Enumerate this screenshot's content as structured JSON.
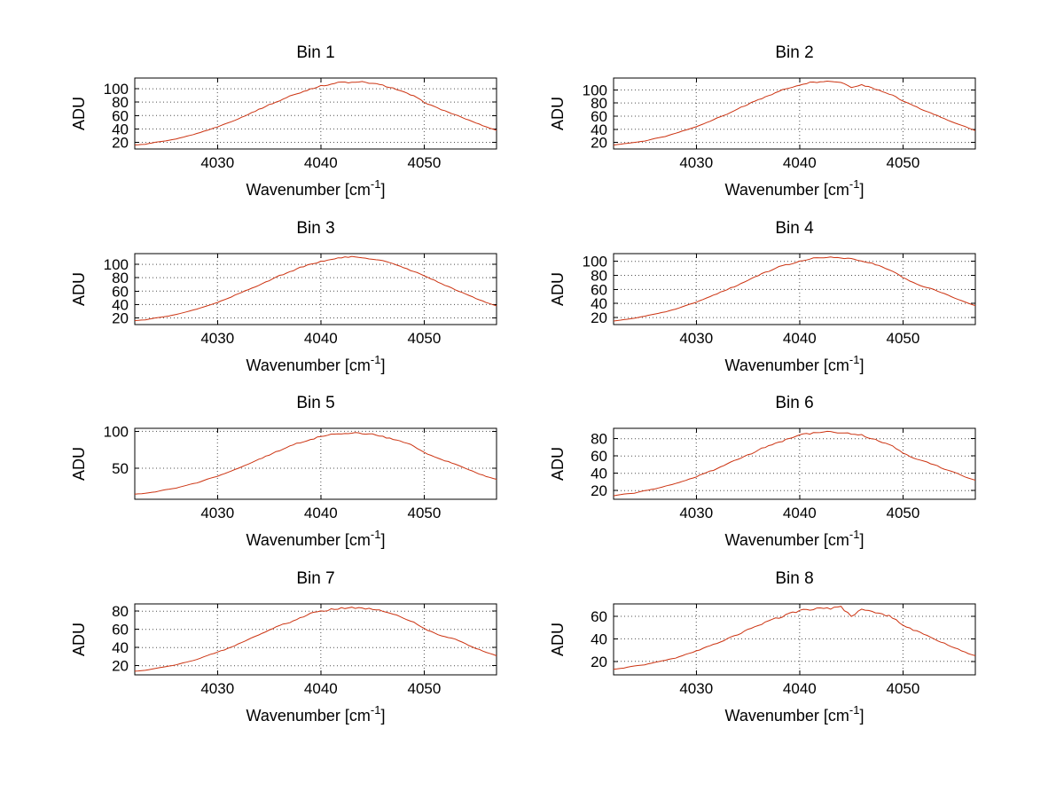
{
  "figure": {
    "background": "#ffffff",
    "line_color": "#cc3311",
    "axis_color": "#000000",
    "grid_color": "#4d4d4d",
    "xlabel_base": "Wavenumber [cm",
    "xlabel_sup": "-1",
    "xlabel_close": "]",
    "ylabel": "ADU"
  },
  "x_values": [
    4022,
    4023,
    4024,
    4025,
    4026,
    4027,
    4028,
    4029,
    4030,
    4031,
    4032,
    4033,
    4034,
    4035,
    4036,
    4037,
    4038,
    4039,
    4040,
    4041,
    4042,
    4043,
    4044,
    4045,
    4046,
    4047,
    4048,
    4049,
    4050,
    4051,
    4052,
    4053,
    4054,
    4055,
    4056,
    4057
  ],
  "chart_data": [
    {
      "type": "line",
      "title": "Bin 1",
      "xlabel": "Wavenumber [cm^-1]",
      "ylabel": "ADU",
      "grid": true,
      "legend": null,
      "xlim": [
        4022,
        4057
      ],
      "ylim": [
        10,
        116
      ],
      "xticks": [
        4030,
        4040,
        4050
      ],
      "yticks": [
        20,
        40,
        60,
        80,
        100
      ],
      "y_values": [
        16,
        17,
        20,
        22,
        25,
        29,
        33,
        38,
        43,
        49,
        55,
        62,
        69,
        76,
        82,
        89,
        94,
        100,
        104,
        107,
        110,
        109,
        110,
        108,
        105,
        101,
        95,
        89,
        80,
        73,
        67,
        61,
        55,
        49,
        43,
        38
      ]
    },
    {
      "type": "line",
      "title": "Bin 2",
      "xlabel": "Wavenumber [cm^-1]",
      "ylabel": "ADU",
      "grid": true,
      "legend": null,
      "xlim": [
        4022,
        4057
      ],
      "ylim": [
        10,
        118
      ],
      "xticks": [
        4030,
        4040,
        4050
      ],
      "yticks": [
        20,
        40,
        60,
        80,
        100
      ],
      "y_values": [
        16,
        18,
        20,
        22,
        26,
        29,
        34,
        39,
        44,
        50,
        57,
        63,
        71,
        78,
        85,
        91,
        98,
        103,
        107,
        111,
        112,
        113,
        112,
        103,
        108,
        103,
        98,
        92,
        83,
        76,
        69,
        63,
        56,
        50,
        44,
        38
      ]
    },
    {
      "type": "line",
      "title": "Bin 3",
      "xlabel": "Wavenumber [cm^-1]",
      "ylabel": "ADU",
      "grid": true,
      "legend": null,
      "xlim": [
        4022,
        4057
      ],
      "ylim": [
        10,
        116
      ],
      "xticks": [
        4030,
        4040,
        4050
      ],
      "yticks": [
        20,
        40,
        60,
        80,
        100
      ],
      "y_values": [
        16,
        17,
        20,
        22,
        25,
        29,
        33,
        38,
        43,
        49,
        56,
        62,
        69,
        76,
        83,
        89,
        95,
        100,
        104,
        108,
        110,
        111,
        110,
        108,
        105,
        101,
        95,
        89,
        83,
        76,
        69,
        62,
        56,
        49,
        43,
        38
      ]
    },
    {
      "type": "line",
      "title": "Bin 4",
      "xlabel": "Wavenumber [cm^-1]",
      "ylabel": "ADU",
      "grid": true,
      "legend": null,
      "xlim": [
        4022,
        4057
      ],
      "ylim": [
        10,
        111
      ],
      "xticks": [
        4030,
        4040,
        4050
      ],
      "yticks": [
        20,
        40,
        60,
        80,
        100
      ],
      "y_values": [
        15,
        17,
        19,
        22,
        25,
        28,
        32,
        37,
        42,
        48,
        54,
        60,
        66,
        73,
        80,
        86,
        92,
        96,
        100,
        104,
        105,
        106,
        105,
        104,
        100,
        97,
        92,
        86,
        77,
        70,
        64,
        60,
        54,
        48,
        42,
        37
      ]
    },
    {
      "type": "line",
      "title": "Bin 5",
      "xlabel": "Wavenumber [cm^-1]",
      "ylabel": "ADU",
      "grid": true,
      "legend": null,
      "xlim": [
        4022,
        4057
      ],
      "ylim": [
        8,
        104
      ],
      "xticks": [
        4030,
        4040,
        4050
      ],
      "yticks": [
        50,
        100
      ],
      "y_values": [
        15,
        16,
        18,
        21,
        23,
        27,
        30,
        35,
        39,
        44,
        50,
        56,
        62,
        68,
        74,
        80,
        85,
        89,
        93,
        96,
        97,
        98,
        97,
        96,
        93,
        89,
        85,
        80,
        71,
        65,
        60,
        56,
        50,
        44,
        39,
        35
      ]
    },
    {
      "type": "line",
      "title": "Bin 6",
      "xlabel": "Wavenumber [cm^-1]",
      "ylabel": "ADU",
      "grid": true,
      "legend": null,
      "xlim": [
        4022,
        4057
      ],
      "ylim": [
        10,
        92
      ],
      "xticks": [
        4030,
        4040,
        4050
      ],
      "yticks": [
        20,
        40,
        60,
        80
      ],
      "y_values": [
        14,
        16,
        17,
        20,
        22,
        25,
        28,
        32,
        36,
        41,
        45,
        51,
        56,
        61,
        67,
        72,
        76,
        80,
        84,
        86,
        87,
        88,
        87,
        86,
        84,
        80,
        76,
        72,
        63,
        58,
        54,
        50,
        45,
        41,
        36,
        32
      ]
    },
    {
      "type": "line",
      "title": "Bin 7",
      "xlabel": "Wavenumber [cm^-1]",
      "ylabel": "ADU",
      "grid": true,
      "legend": null,
      "xlim": [
        4022,
        4057
      ],
      "ylim": [
        10,
        88
      ],
      "xticks": [
        4030,
        4040,
        4050
      ],
      "yticks": [
        20,
        40,
        60,
        80
      ],
      "y_values": [
        14,
        15,
        17,
        19,
        21,
        24,
        27,
        31,
        35,
        39,
        44,
        49,
        54,
        59,
        64,
        68,
        73,
        77,
        80,
        82,
        83,
        84,
        83,
        82,
        80,
        77,
        73,
        68,
        61,
        56,
        52,
        49,
        44,
        39,
        35,
        31
      ]
    },
    {
      "type": "line",
      "title": "Bin 8",
      "xlabel": "Wavenumber [cm^-1]",
      "ylabel": "ADU",
      "grid": true,
      "legend": null,
      "xlim": [
        4022,
        4057
      ],
      "ylim": [
        8,
        71
      ],
      "xticks": [
        4030,
        4040,
        4050
      ],
      "yticks": [
        20,
        40,
        60
      ],
      "y_values": [
        13,
        14,
        16,
        17,
        19,
        21,
        23,
        26,
        29,
        33,
        36,
        40,
        44,
        48,
        52,
        56,
        59,
        62,
        65,
        66,
        68,
        67,
        68,
        60,
        66,
        64,
        62,
        59,
        52,
        48,
        44,
        40,
        36,
        32,
        28,
        25
      ]
    }
  ]
}
